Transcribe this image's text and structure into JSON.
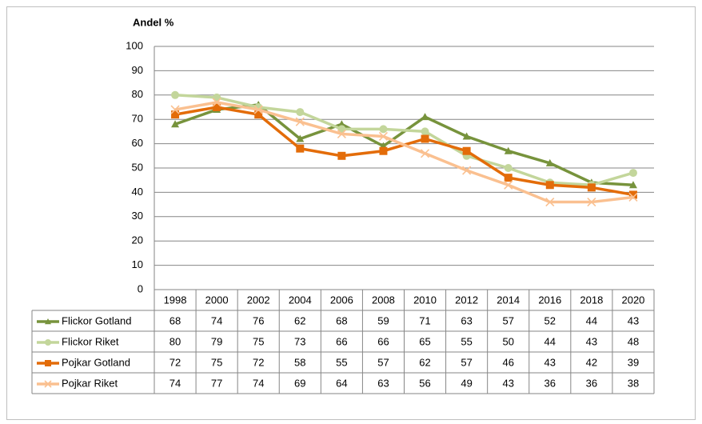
{
  "chart_data": {
    "type": "line",
    "y_label": "Andel %",
    "categories": [
      "1998",
      "2000",
      "2002",
      "2004",
      "2006",
      "2008",
      "2010",
      "2012",
      "2014",
      "2016",
      "2018",
      "2020"
    ],
    "series": [
      {
        "name": "Flickor Gotland",
        "color": "#77933c",
        "marker": "triangle",
        "values": [
          68,
          74,
          76,
          62,
          68,
          59,
          71,
          63,
          57,
          52,
          44,
          43
        ]
      },
      {
        "name": "Flickor Riket",
        "color": "#c3d69b",
        "marker": "circle",
        "values": [
          80,
          79,
          75,
          73,
          66,
          66,
          65,
          55,
          50,
          44,
          43,
          48
        ]
      },
      {
        "name": "Pojkar Gotland",
        "color": "#e36c09",
        "marker": "square",
        "values": [
          72,
          75,
          72,
          58,
          55,
          57,
          62,
          57,
          46,
          43,
          42,
          39
        ]
      },
      {
        "name": "Pojkar Riket",
        "color": "#fac090",
        "marker": "x",
        "values": [
          74,
          77,
          74,
          69,
          64,
          63,
          56,
          49,
          43,
          36,
          36,
          38
        ]
      }
    ],
    "ylim": [
      0,
      100
    ],
    "yticks": [
      0,
      10,
      20,
      30,
      40,
      50,
      60,
      70,
      80,
      90,
      100
    ],
    "grid": true
  }
}
